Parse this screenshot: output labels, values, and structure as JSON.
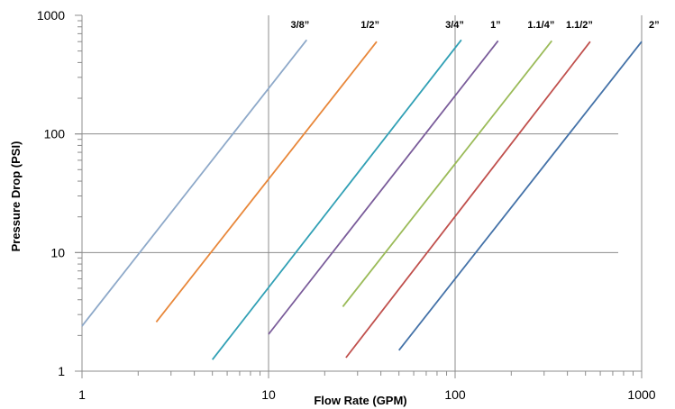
{
  "chart_data": {
    "type": "line",
    "xlabel": "Flow Rate (GPM)",
    "ylabel": "Pressure Drop (PSI)",
    "xscale": "log",
    "yscale": "log",
    "xlim": [
      1,
      1000
    ],
    "ylim": [
      1,
      1000
    ],
    "xticks": [
      {
        "value": 1,
        "label": "1"
      },
      {
        "value": 10,
        "label": "10"
      },
      {
        "value": 100,
        "label": "100"
      },
      {
        "value": 1000,
        "label": "1000"
      }
    ],
    "yticks": [
      {
        "value": 1,
        "label": "1"
      },
      {
        "value": 10,
        "label": "10"
      },
      {
        "value": 100,
        "label": "100"
      },
      {
        "value": 1000,
        "label": "1000"
      }
    ],
    "grid": "major vertical and horizontal",
    "legend": "labels above line ends",
    "series": [
      {
        "name": "3/8”",
        "color": "#8EA9C9",
        "x": [
          1,
          16
        ],
        "y": [
          2.4,
          620
        ]
      },
      {
        "name": "1/2”",
        "color": "#E8873A",
        "x": [
          2.5,
          38
        ],
        "y": [
          2.6,
          600
        ]
      },
      {
        "name": "3/4”",
        "color": "#31A0B5",
        "x": [
          5,
          108
        ],
        "y": [
          1.25,
          620
        ]
      },
      {
        "name": "1”",
        "color": "#7A5C9A",
        "x": [
          10,
          170
        ],
        "y": [
          2.05,
          610
        ]
      },
      {
        "name": "1.1/4”",
        "color": "#9BBB59",
        "x": [
          25,
          330
        ],
        "y": [
          3.5,
          610
        ]
      },
      {
        "name": "1.1/2”",
        "color": "#C0504D",
        "x": [
          26,
          530
        ],
        "y": [
          1.3,
          600
        ]
      },
      {
        "name": "2”",
        "color": "#4472A8",
        "x": [
          50,
          1000
        ],
        "y": [
          1.5,
          600
        ]
      }
    ]
  }
}
